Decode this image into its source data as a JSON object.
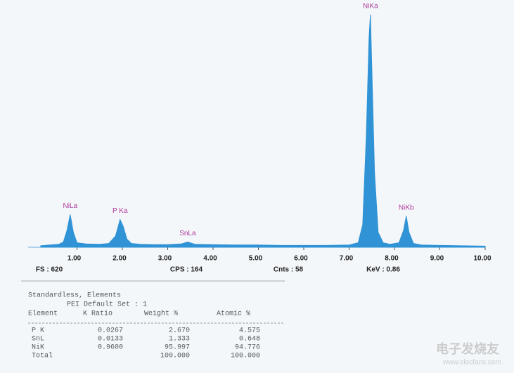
{
  "chart_data": {
    "type": "area",
    "color": "#2f93d6",
    "x": [
      0.2,
      0.4,
      0.6,
      0.7,
      0.78,
      0.85,
      0.92,
      1.0,
      1.2,
      1.5,
      1.7,
      1.85,
      1.95,
      2.02,
      2.1,
      2.2,
      2.4,
      2.7,
      3.0,
      3.3,
      3.44,
      3.6,
      4.0,
      4.5,
      5.0,
      5.5,
      6.0,
      6.5,
      7.0,
      7.2,
      7.3,
      7.38,
      7.44,
      7.47,
      7.5,
      7.56,
      7.64,
      7.75,
      7.9,
      8.1,
      8.2,
      8.26,
      8.32,
      8.42,
      8.6,
      9.0,
      9.5,
      10.0
    ],
    "values": [
      4,
      6,
      8,
      14,
      45,
      87,
      40,
      12,
      9,
      8,
      10,
      30,
      74,
      55,
      22,
      10,
      8,
      7,
      7,
      9,
      14,
      8,
      7,
      6,
      6,
      5,
      5,
      5,
      6,
      12,
      60,
      300,
      560,
      620,
      480,
      200,
      40,
      12,
      8,
      12,
      45,
      83,
      40,
      10,
      6,
      5,
      4,
      3
    ],
    "xlim": [
      0,
      10
    ],
    "ylim": [
      0,
      640
    ],
    "xticks": [
      {
        "value": 1,
        "label": "1.00"
      },
      {
        "value": 2,
        "label": "2.00"
      },
      {
        "value": 3,
        "label": "3.00"
      },
      {
        "value": 4,
        "label": "4.00"
      },
      {
        "value": 5,
        "label": "5.00"
      },
      {
        "value": 6,
        "label": "6.00"
      },
      {
        "value": 7,
        "label": "7.00"
      },
      {
        "value": 8,
        "label": "8.00"
      },
      {
        "value": 9,
        "label": "9.00"
      },
      {
        "value": 10,
        "label": "10.00"
      }
    ],
    "peaks": [
      {
        "label": "NiLa",
        "x": 0.85,
        "y": 87
      },
      {
        "label": "P Ka",
        "x": 1.95,
        "y": 74
      },
      {
        "label": "SnLa",
        "x": 3.44,
        "y": 14
      },
      {
        "label": "NiKa",
        "x": 7.47,
        "y": 620
      },
      {
        "label": "NiKb",
        "x": 8.26,
        "y": 83
      }
    ]
  },
  "stats": [
    "FS : 620",
    "CPS : 164",
    "Cnts : 58",
    "KeV : 0.86"
  ],
  "table": {
    "title": "Standardless, Elements",
    "subtitle": "PEI Default Set : 1",
    "header": [
      "Element",
      "K Ratio",
      "Weight %",
      "Atomic %"
    ],
    "rows": [
      [
        "P K",
        "0.0267",
        "2.670",
        "4.575"
      ],
      [
        "SnL",
        "0.0133",
        "1.333",
        "0.648"
      ],
      [
        "NiK",
        "0.9600",
        "95.997",
        "94.776"
      ],
      [
        "Total",
        "",
        "100.000",
        "100.000"
      ]
    ]
  },
  "watermark": [
    "电子发烧友",
    "www.elecfans.com"
  ]
}
